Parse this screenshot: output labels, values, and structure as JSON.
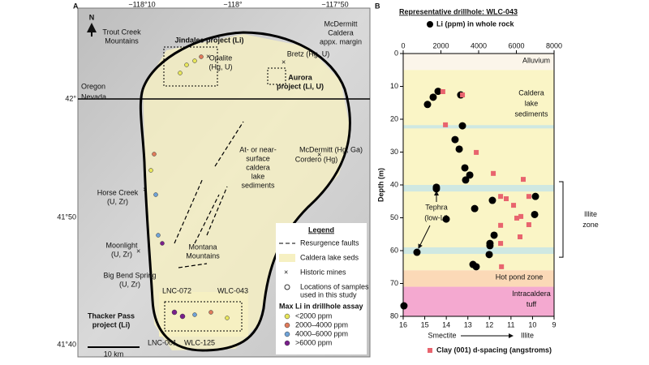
{
  "panel_labels": [
    "A",
    "B"
  ],
  "map": {
    "graticule": {
      "lon": [
        "−118°10",
        "−118°",
        "−117°50"
      ],
      "lat": [
        "42°",
        "41°50",
        "41°40"
      ]
    },
    "north": "N",
    "scale": "10 km",
    "labels": [
      [
        "Trout Creek",
        "Mountains"
      ],
      [
        "Jindalee project (Li)"
      ],
      [
        "Opalite",
        "(Hg, U)"
      ],
      [
        "McDermitt",
        "Caldera",
        "appx. margin"
      ],
      [
        "Bretz (Hg, U)"
      ],
      [
        "Aurora",
        "project (Li, U)"
      ],
      [
        "Oregon"
      ],
      [
        "Nevada"
      ],
      [
        "McDermitt (Hg, Ga)"
      ],
      [
        "Cordero (Hg)"
      ],
      [
        "At- or near-",
        "surface",
        "caldera",
        "lake",
        "sediments"
      ],
      [
        "Horse Creek",
        "(U, Zr)"
      ],
      [
        "Moonlight",
        "(U, Zr)"
      ],
      [
        "Montana",
        "Mountains"
      ],
      [
        "Big Bend Spring",
        "(U, Zr)"
      ],
      [
        "LNC-072"
      ],
      [
        "WLC-043"
      ],
      [
        "Thacker Pass",
        "project (Li)"
      ],
      [
        "LNC-001"
      ],
      [
        "WLC-125"
      ]
    ],
    "legend": {
      "title": "Legend",
      "items": [
        [
          "Resurgence faults"
        ],
        [
          "Caldera lake seds"
        ],
        [
          "Historic mines"
        ],
        [
          "Locations of samples",
          "used in this study"
        ]
      ],
      "li_title": "Max Li in drillhole assay",
      "li_classes": [
        {
          "label": "<2000 ppm",
          "color": "#e8e65a"
        },
        {
          "label": "2000–4000 ppm",
          "color": "#e07b5b"
        },
        {
          "label": "4000–6000 ppm",
          "color": "#6fa3d8"
        },
        {
          "label": ">6000 ppm",
          "color": "#7a1f8c"
        }
      ]
    }
  },
  "chart_data": {
    "type": "scatter",
    "title": "Representative drillhole: WLC-043",
    "ylabel": "Depth (m)",
    "ylim": [
      80,
      0
    ],
    "yticks": [
      0,
      10,
      20,
      30,
      40,
      50,
      60,
      70,
      80
    ],
    "xlim": [
      0,
      8000
    ],
    "xticks": [
      0,
      2000,
      4000,
      6000,
      8000
    ],
    "x2lim": [
      16,
      9
    ],
    "x2ticks": [
      16,
      15,
      14,
      13,
      12,
      11,
      10,
      9
    ],
    "x2_end_labels": [
      "Smectite",
      "Illite"
    ],
    "series": [
      {
        "name": "Li (ppm) in whole rock",
        "color": "#000000",
        "marker": "circle",
        "x": [
          1850,
          1590,
          1290,
          3050,
          3140,
          2750,
          2970,
          3270,
          3530,
          3310,
          1760,
          1760,
          4730,
          7010,
          6970,
          3790,
          2280,
          4820,
          4600,
          4600,
          730,
          4560,
          3700,
          3870,
          40
        ],
        "y": [
          11.5,
          13.3,
          15.5,
          12.6,
          22,
          26.2,
          29.1,
          34.8,
          37,
          38.5,
          40.7,
          41.2,
          44.7,
          43.5,
          49,
          47.2,
          50.4,
          55.3,
          57.8,
          58.5,
          60.5,
          61.2,
          64.2,
          64.9,
          76.8
        ]
      },
      {
        "name": "Clay (001) d-spacing (angstroms)",
        "color": "#e8646e",
        "marker": "square",
        "axis": "x2",
        "x": [
          14.16,
          13.25,
          14.04,
          12.61,
          11.82,
          10.43,
          11.48,
          11.22,
          10.17,
          10.88,
          10.54,
          10.73,
          11.48,
          10.17,
          10.58,
          11.48,
          11.44
        ],
        "y": [
          11.6,
          12.6,
          21.7,
          30.1,
          36.5,
          38.3,
          43.5,
          44.2,
          43.5,
          46.2,
          49.6,
          50.1,
          52.3,
          52.1,
          55.8,
          57.8,
          64.9
        ]
      }
    ],
    "zones": [
      {
        "label": [
          "Alluvium"
        ],
        "from": 0,
        "to": 5,
        "color": "#fbf5ea"
      },
      {
        "label": [
          "Caldera",
          "lake",
          "sediments"
        ],
        "from": 5,
        "to": 66,
        "color": "#faf5c6"
      },
      {
        "label": [
          "Hot pond zone"
        ],
        "from": 66,
        "to": 71,
        "color": "#fbd9b7"
      },
      {
        "label": [
          "Intracaldera",
          "tuff"
        ],
        "from": 71,
        "to": 80,
        "color": "#f4a9d0"
      }
    ],
    "tephra_bands": [
      {
        "from": 21.8,
        "to": 22.8
      },
      {
        "from": 40,
        "to": 42
      },
      {
        "from": 59,
        "to": 61
      }
    ],
    "tephra_color": "#cfe8e2",
    "tephra_label": [
      "Tephra",
      "(low-Li)"
    ],
    "illite_zone": {
      "from": 39,
      "to": 62,
      "label": [
        "Illite",
        "zone"
      ]
    }
  }
}
